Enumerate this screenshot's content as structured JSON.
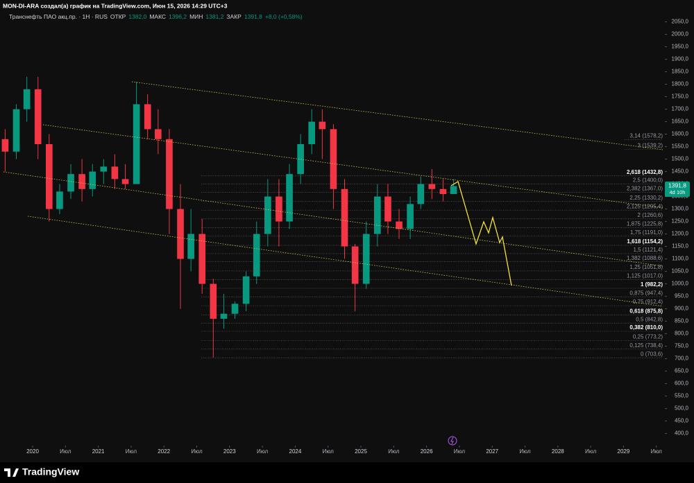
{
  "header": {
    "author_line": "MON-DI-ARA создал(а) график на TradingView.com, Июн 15, 2026 14:29 UTC+3",
    "symbol": "Транснефть ПАО акц.пр. · 1H · RUS",
    "ohlc": [
      {
        "key": "ОТКР",
        "value": "1382,0"
      },
      {
        "key": "МАКС",
        "value": "1396,2"
      },
      {
        "key": "МИН",
        "value": "1381,2"
      },
      {
        "key": "ЗАКР",
        "value": "1391,8"
      }
    ],
    "change": "+8,0 (+0,58%)"
  },
  "price_badge": {
    "price": "1391,8",
    "timer": "4d 10h"
  },
  "footer": {
    "brand": "TradingView"
  },
  "chart_data": {
    "type": "candlestick",
    "x": [
      2019.5,
      2019.67,
      2019.83,
      2020.0,
      2020.17,
      2020.33,
      2020.5,
      2020.67,
      2020.83,
      2021.0,
      2021.17,
      2021.33,
      2021.5,
      2021.67,
      2021.83,
      2022.0,
      2022.17,
      2022.33,
      2022.5,
      2022.67,
      2022.83,
      2023.0,
      2023.17,
      2023.33,
      2023.5,
      2023.67,
      2023.83,
      2024.0,
      2024.17,
      2024.33,
      2024.5,
      2024.67,
      2024.83,
      2025.0,
      2025.17,
      2025.33,
      2025.5,
      2025.67,
      2025.83,
      2026.0,
      2026.17,
      2026.33
    ],
    "open": [
      1580,
      1530,
      1700,
      1780,
      1560,
      1300,
      1370,
      1440,
      1380,
      1450,
      1470,
      1420,
      1400,
      1720,
      1620,
      1580,
      1300,
      1100,
      1200,
      1000,
      860,
      880,
      920,
      1030,
      1200,
      1350,
      1250,
      1440,
      1560,
      1650,
      1620,
      1380,
      1150,
      1000,
      1200,
      1350,
      1250,
      1220,
      1320,
      1400,
      1380,
      1360
    ],
    "high": [
      1620,
      1720,
      1830,
      1830,
      1600,
      1400,
      1480,
      1500,
      1480,
      1500,
      1520,
      1480,
      1810,
      1760,
      1700,
      1620,
      1400,
      1300,
      1260,
      1020,
      960,
      930,
      1050,
      1250,
      1420,
      1420,
      1480,
      1600,
      1700,
      1700,
      1640,
      1420,
      1160,
      1250,
      1400,
      1400,
      1300,
      1350,
      1430,
      1460,
      1420,
      1420
    ],
    "low": [
      1450,
      1500,
      1650,
      1500,
      1250,
      1280,
      1340,
      1330,
      1350,
      1400,
      1380,
      1380,
      1400,
      1580,
      1520,
      1200,
      900,
      1050,
      960,
      705,
      820,
      860,
      890,
      1000,
      1150,
      1150,
      1220,
      1400,
      1520,
      1500,
      1300,
      1100,
      890,
      980,
      1150,
      1200,
      1180,
      1180,
      1300,
      1340,
      1330,
      1360
    ],
    "close": [
      1530,
      1700,
      1780,
      1560,
      1300,
      1370,
      1440,
      1380,
      1450,
      1470,
      1420,
      1400,
      1720,
      1620,
      1580,
      1300,
      1100,
      1200,
      1000,
      860,
      880,
      920,
      1030,
      1200,
      1350,
      1250,
      1440,
      1560,
      1650,
      1620,
      1380,
      1150,
      1000,
      1200,
      1350,
      1250,
      1220,
      1320,
      1400,
      1380,
      1360,
      1392
    ],
    "up_color": "#089981",
    "down_color": "#f23645",
    "ylim": [
      370,
      2085
    ],
    "xlim": [
      2019.556,
      2029.598
    ],
    "yticks": [
      {
        "value": 2050,
        "label": "2050,0"
      },
      {
        "value": 2000,
        "label": "2000,0"
      },
      {
        "value": 1950,
        "label": "1950,0"
      },
      {
        "value": 1900,
        "label": "1900,0"
      },
      {
        "value": 1850,
        "label": "1850,0"
      },
      {
        "value": 1800,
        "label": "1800,0"
      },
      {
        "value": 1750,
        "label": "1750,0"
      },
      {
        "value": 1700,
        "label": "1700,0"
      },
      {
        "value": 1650,
        "label": "1650,0"
      },
      {
        "value": 1600,
        "label": "1600,0"
      },
      {
        "value": 1550,
        "label": "1550,0"
      },
      {
        "value": 1500,
        "label": "1500,0"
      },
      {
        "value": 1450,
        "label": "1450,0"
      },
      {
        "value": 1400,
        "label": "1400,0"
      },
      {
        "value": 1350,
        "label": "1350,0"
      },
      {
        "value": 1300,
        "label": "1300,0"
      },
      {
        "value": 1250,
        "label": "1250,0"
      },
      {
        "value": 1200,
        "label": "1200,0"
      },
      {
        "value": 1150,
        "label": "1150,0"
      },
      {
        "value": 1100,
        "label": "1100,0"
      },
      {
        "value": 1050,
        "label": "1050,0"
      },
      {
        "value": 1000,
        "label": "1000,0"
      },
      {
        "value": 950,
        "label": "950,0"
      },
      {
        "value": 900,
        "label": "900,0"
      },
      {
        "value": 850,
        "label": "850,0"
      },
      {
        "value": 800,
        "label": "800,0"
      },
      {
        "value": 750,
        "label": "750,0"
      },
      {
        "value": 700,
        "label": "700,0"
      },
      {
        "value": 650,
        "label": "650,0"
      },
      {
        "value": 600,
        "label": "600,0"
      },
      {
        "value": 550,
        "label": "550,0"
      },
      {
        "value": 500,
        "label": "500,0"
      },
      {
        "value": 450,
        "label": "450,0"
      },
      {
        "value": 400,
        "label": "400,0"
      }
    ],
    "xticks": [
      {
        "value": 2020,
        "label": "2020"
      },
      {
        "value": 2020.5,
        "label": "Июл"
      },
      {
        "value": 2021,
        "label": "2021"
      },
      {
        "value": 2021.5,
        "label": "Июл"
      },
      {
        "value": 2022,
        "label": "2022"
      },
      {
        "value": 2022.5,
        "label": "Июл"
      },
      {
        "value": 2023,
        "label": "2023"
      },
      {
        "value": 2023.5,
        "label": "Июл"
      },
      {
        "value": 2024,
        "label": "2024"
      },
      {
        "value": 2024.5,
        "label": "Июл"
      },
      {
        "value": 2025,
        "label": "2025"
      },
      {
        "value": 2025.5,
        "label": "Июл"
      },
      {
        "value": 2026,
        "label": "2026"
      },
      {
        "value": 2026.5,
        "label": "Июл"
      },
      {
        "value": 2027,
        "label": "2027"
      },
      {
        "value": 2027.5,
        "label": "Июл"
      },
      {
        "value": 2028,
        "label": "2028"
      },
      {
        "value": 2028.5,
        "label": "Июл"
      },
      {
        "value": 2029,
        "label": "2029"
      },
      {
        "value": 2029.5,
        "label": "Июл"
      }
    ],
    "fib_levels": [
      {
        "value": 1578.2,
        "label": "3,14 (1578,2)"
      },
      {
        "value": 1539.2,
        "label": "3 (1539,2)"
      },
      {
        "value": 1432.8,
        "label": "2,618 (1432,8)",
        "bold": true
      },
      {
        "value": 1400.0,
        "label": "2,5 (1400,0)"
      },
      {
        "value": 1367.0,
        "label": "2,382 (1367,0)"
      },
      {
        "value": 1330.2,
        "label": "2,25 (1330,2)"
      },
      {
        "value": 1295.4,
        "label": "2,125 (1295,4)"
      },
      {
        "value": 1260.6,
        "label": "2 (1260,6)"
      },
      {
        "value": 1225.8,
        "label": "1,875 (1225,8)"
      },
      {
        "value": 1191.0,
        "label": "1,75 (1191,0)"
      },
      {
        "value": 1154.2,
        "label": "1,618 (1154,2)",
        "bold": true
      },
      {
        "value": 1121.4,
        "label": "1,5 (1121,4)"
      },
      {
        "value": 1088.6,
        "label": "1,382 (1088,6)"
      },
      {
        "value": 1051.8,
        "label": "1,25 (1051,8)"
      },
      {
        "value": 1017.0,
        "label": "1,125 (1017,0)"
      },
      {
        "value": 982.2,
        "label": "1 (982,2)",
        "bold": true
      },
      {
        "value": 947.4,
        "label": "0,875 (947,4)"
      },
      {
        "value": 912.4,
        "label": "0,75 (912,4)"
      },
      {
        "value": 875.8,
        "label": "0,618 (875,8)",
        "bold": true
      },
      {
        "value": 842.8,
        "label": "0,5 (842,8)"
      },
      {
        "value": 810.0,
        "label": "0,382 (810,0)",
        "bold": true
      },
      {
        "value": 773.2,
        "label": "0,25 (773,2)"
      },
      {
        "value": 738.4,
        "label": "0,125 (738,4)"
      },
      {
        "value": 703.6,
        "label": "0 (703,6)"
      }
    ]
  }
}
